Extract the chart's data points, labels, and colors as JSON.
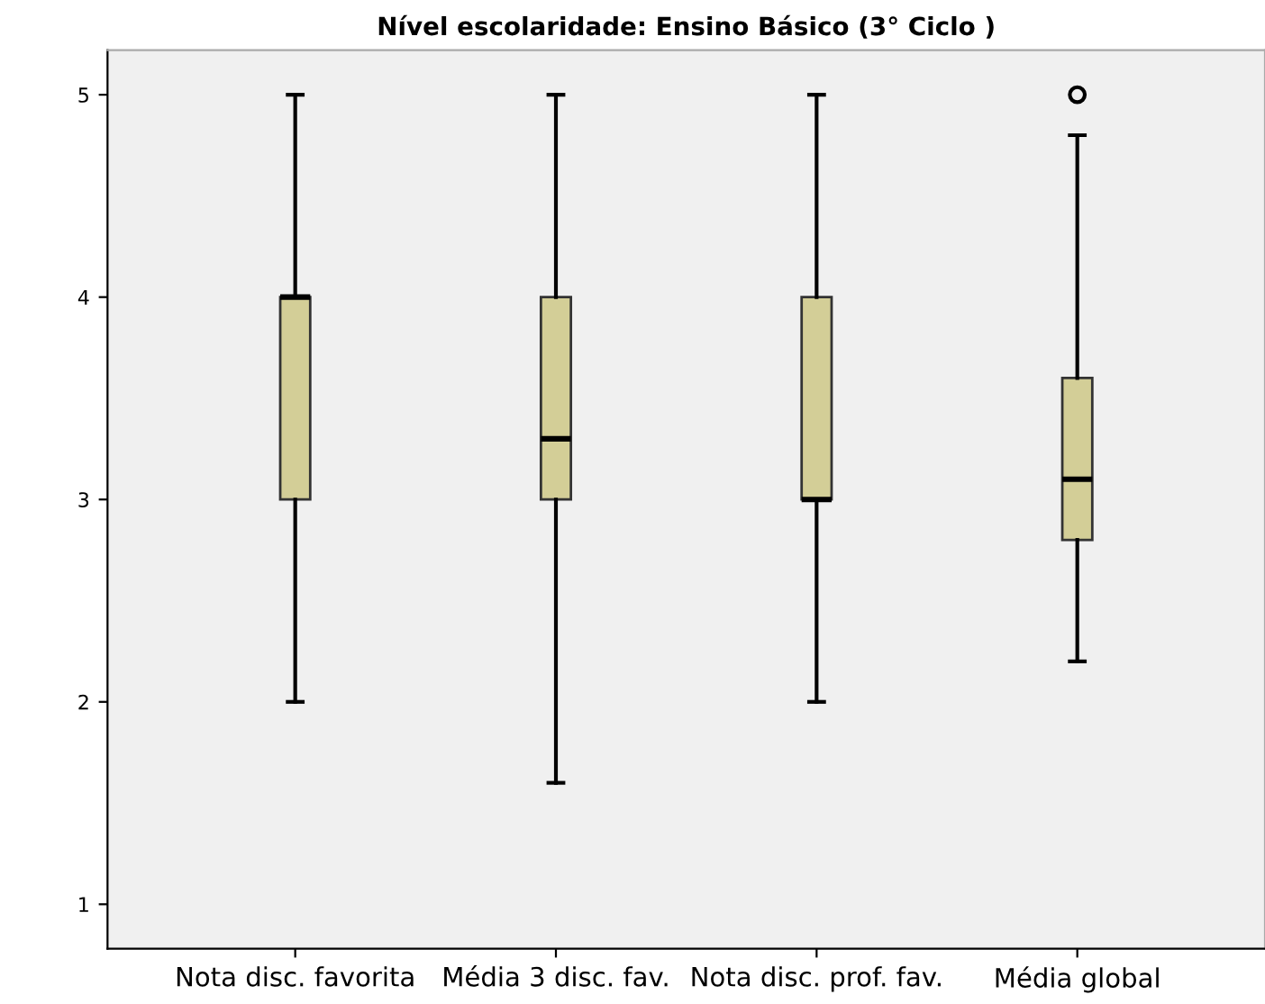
{
  "chart_data": {
    "type": "box",
    "title": "Nível escolaridade: Ensino Básico (3° Ciclo )",
    "categories": [
      "Nota disc. favorita",
      "Média 3 disc. fav.",
      "Nota disc. prof. fav.",
      "Média global"
    ],
    "boxes": [
      {
        "low": 2,
        "q1": 3,
        "median": 4,
        "q3": 4,
        "high": 5
      },
      {
        "low": 1.6,
        "q1": 3,
        "median": 3.3,
        "q3": 4,
        "high": 5
      },
      {
        "low": 2,
        "q1": 3,
        "median": 3,
        "q3": 4,
        "high": 5
      },
      {
        "low": 2.2,
        "q1": 2.8,
        "median": 3.1,
        "q3": 3.6,
        "high": 4.8,
        "outliers": [
          5
        ]
      }
    ],
    "color": "#d3ce97",
    "ylim": [
      0.78,
      5.22
    ],
    "yticks": [
      1,
      2,
      3,
      4,
      5
    ],
    "grid": false
  }
}
